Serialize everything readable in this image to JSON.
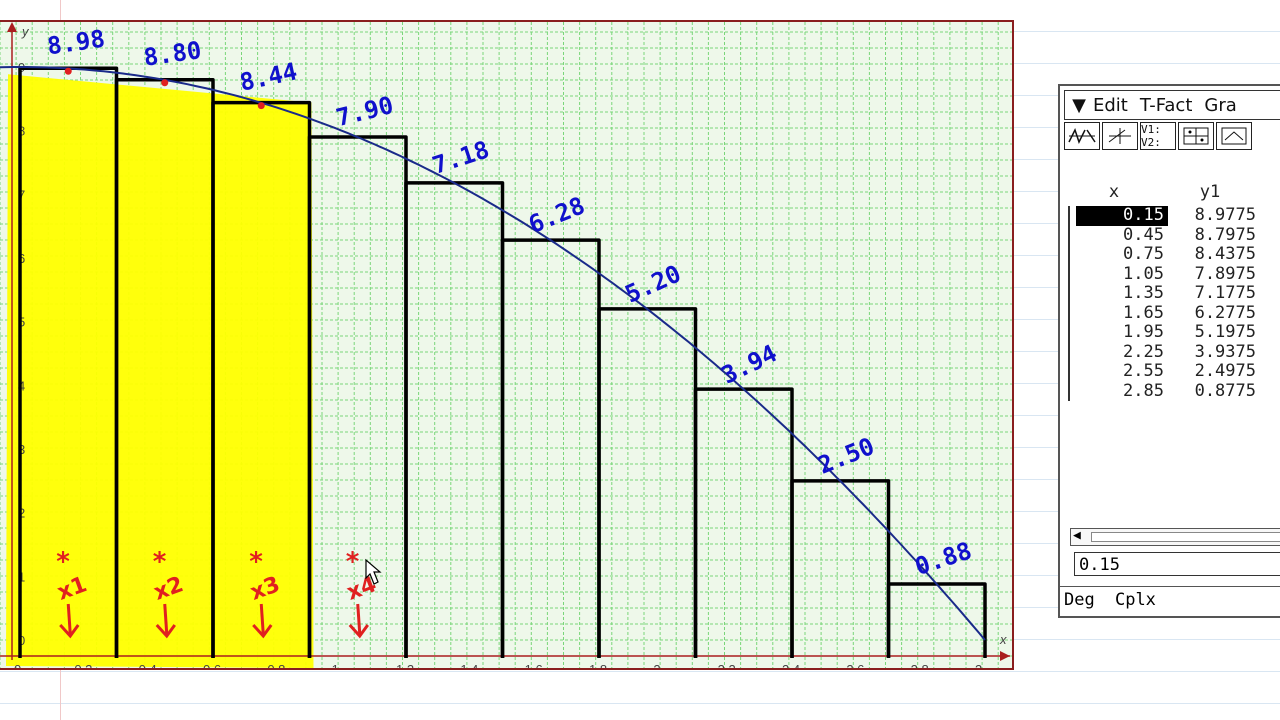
{
  "graph": {
    "axis_x_letter": "x",
    "axis_y_letter": "y",
    "x_ticks": [
      "0",
      "0.2",
      "0.4",
      "0.6",
      "0.8",
      "1",
      "1.2",
      "1.4",
      "1.6",
      "1.8",
      "2",
      "2.2",
      "2.4",
      "2.6",
      "2.8",
      "3"
    ],
    "y_ticks": [
      "0",
      "1",
      "2",
      "3",
      "4",
      "5",
      "6",
      "7",
      "8",
      "9"
    ],
    "bar_labels": [
      "8.98",
      "8.80",
      "8.44",
      "7.90",
      "7.18",
      "6.28",
      "5.20",
      "3.94",
      "2.50",
      "0.88"
    ],
    "marker_labels": [
      "x1",
      "x2",
      "x3",
      "x4"
    ],
    "colors": {
      "grid": "#7ad67a",
      "panel_bg": "#eef8ea",
      "border": "#8a1e1e",
      "curve": "#1a2a8a",
      "handwriting": "#1010cc",
      "highlight": "#ffff00",
      "annotation": "#e02020"
    }
  },
  "chart_data": {
    "type": "bar",
    "x": [
      0.15,
      0.45,
      0.75,
      1.05,
      1.35,
      1.65,
      1.95,
      2.25,
      2.55,
      2.85
    ],
    "values": [
      8.98,
      8.8,
      8.44,
      7.9,
      7.18,
      6.28,
      5.2,
      3.94,
      2.5,
      0.88
    ],
    "bar_width": 0.3,
    "highlighted_bars": 3,
    "curve": "y = 9 - x^2",
    "xlim": [
      0,
      3
    ],
    "ylim": [
      0,
      9
    ],
    "xlabel": "x",
    "ylabel": "y",
    "grid": true
  },
  "calculator": {
    "menu": [
      "Edit",
      "T-Fact",
      "Gra"
    ],
    "toolbar": [
      "graph-icon",
      "table-graph-icon",
      "v1-v2-icon",
      "grid-icon",
      "settings-icon"
    ],
    "toolbar_text": [
      "",
      "",
      "V1: V2:",
      "",
      ""
    ],
    "table": {
      "headers": [
        "x",
        "y1"
      ],
      "rows": [
        [
          "0.15",
          "8.9775"
        ],
        [
          "0.45",
          "8.7975"
        ],
        [
          "0.75",
          "8.4375"
        ],
        [
          "1.05",
          "7.8975"
        ],
        [
          "1.35",
          "7.1775"
        ],
        [
          "1.65",
          "6.2775"
        ],
        [
          "1.95",
          "5.1975"
        ],
        [
          "2.25",
          "3.9375"
        ],
        [
          "2.55",
          "2.4975"
        ],
        [
          "2.85",
          "0.8775"
        ]
      ]
    },
    "entry_value": "0.15",
    "status": [
      "Deg",
      "Cplx"
    ]
  }
}
